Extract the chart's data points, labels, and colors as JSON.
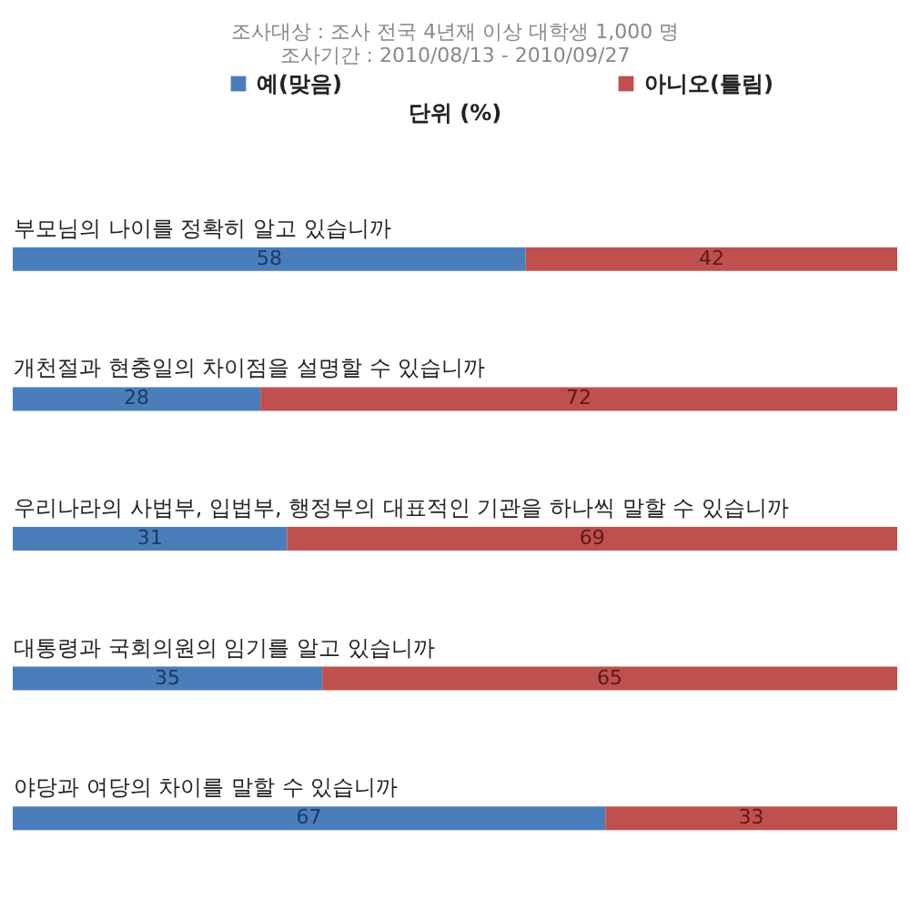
{
  "chart_data": {
    "type": "bar",
    "orientation": "horizontal",
    "stacked": true,
    "data_labels": true,
    "legend": "top",
    "title": "조사대상 : 조사 전국 4년재 이상 대학생 1,000 명",
    "subtitle": "조사기간 : 2010/08/13 - 2010/09/27",
    "annotations": [
      "단위 (%)"
    ],
    "categories": [
      "부모님의 나이를 정확히 알고 있습니까",
      "개천절과 현충일의 차이점을 설명할 수 있습니까",
      "우리나라의 사법부, 입법부, 행정부의 대표적인 기관을 하나씩 말할 수 있습니까",
      "대통령과 국회의원의 임기를 알고 있습니까",
      "야당과 여당의 차이를 말할 수 있습니까"
    ],
    "series": [
      {
        "name": "예(맞음)",
        "color": "#4a7ebb",
        "values": [
          58,
          28,
          31,
          35,
          67
        ]
      },
      {
        "name": "아니오(틀림)",
        "color": "#c0504d",
        "values": [
          42,
          72,
          69,
          65,
          33
        ]
      }
    ]
  }
}
